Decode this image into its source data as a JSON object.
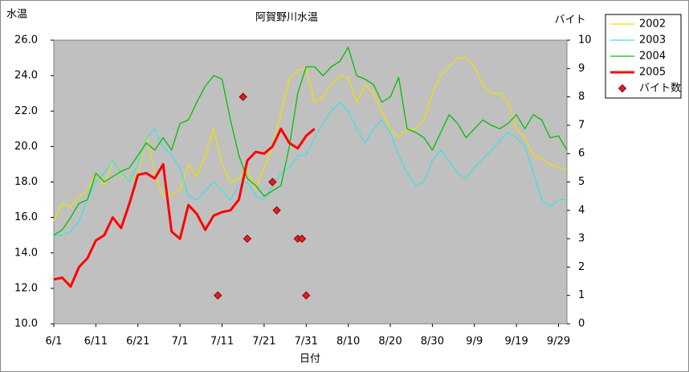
{
  "chart_data": {
    "type": "line",
    "title": "阿賀野川水温",
    "y_label": "水温",
    "y2_label": "バイト",
    "x_label": "日付",
    "xlim": [
      0,
      122
    ],
    "xticks": [
      {
        "value": 0,
        "label": "6/1"
      },
      {
        "value": 10,
        "label": "6/11"
      },
      {
        "value": 20,
        "label": "6/21"
      },
      {
        "value": 30,
        "label": "7/1"
      },
      {
        "value": 40,
        "label": "7/11"
      },
      {
        "value": 50,
        "label": "7/21"
      },
      {
        "value": 60,
        "label": "7/31"
      },
      {
        "value": 70,
        "label": "8/10"
      },
      {
        "value": 80,
        "label": "8/20"
      },
      {
        "value": 90,
        "label": "8/30"
      },
      {
        "value": 100,
        "label": "9/9"
      },
      {
        "value": 110,
        "label": "9/19"
      },
      {
        "value": 120,
        "label": "9/29"
      }
    ],
    "ylim": [
      10,
      26
    ],
    "yticks": [
      {
        "value": 10,
        "label": "10.0"
      },
      {
        "value": 12,
        "label": "12.0"
      },
      {
        "value": 14,
        "label": "14.0"
      },
      {
        "value": 16,
        "label": "16.0"
      },
      {
        "value": 18,
        "label": "18.0"
      },
      {
        "value": 20,
        "label": "20.0"
      },
      {
        "value": 22,
        "label": "22.0"
      },
      {
        "value": 24,
        "label": "24.0"
      },
      {
        "value": 26,
        "label": "26.0"
      }
    ],
    "y2lim": [
      0,
      10
    ],
    "y2ticks": [
      0,
      1,
      2,
      3,
      4,
      5,
      6,
      7,
      8,
      9,
      10
    ],
    "x": [
      0,
      2,
      4,
      6,
      8,
      10,
      12,
      14,
      16,
      18,
      20,
      22,
      24,
      26,
      28,
      30,
      32,
      34,
      36,
      38,
      40,
      42,
      44,
      46,
      48,
      50,
      52,
      54,
      56,
      58,
      60,
      62,
      64,
      66,
      68,
      70,
      72,
      74,
      76,
      78,
      80,
      82,
      84,
      86,
      88,
      90,
      92,
      94,
      96,
      98,
      100,
      102,
      104,
      106,
      108,
      110,
      112,
      114,
      116,
      118,
      120,
      122
    ],
    "series": [
      {
        "name": "2002",
        "color": "#f0e000",
        "values": [
          15.8,
          16.8,
          16.6,
          17.2,
          17.5,
          18.5,
          17.8,
          19.2,
          18.4,
          18.0,
          18.5,
          20.6,
          18.5,
          17.2,
          17.3,
          17.5,
          19.0,
          18.3,
          19.5,
          21.0,
          19.0,
          18.0,
          18.2,
          18.8,
          17.6,
          18.8,
          20.0,
          21.9,
          23.8,
          24.3,
          24.4,
          22.5,
          22.8,
          23.5,
          24.0,
          23.9,
          22.5,
          23.5,
          23.0,
          22.0,
          21.0,
          20.5,
          21.0,
          21.0,
          21.5,
          23.0,
          24.0,
          24.5,
          25.0,
          25.0,
          24.5,
          23.5,
          23.0,
          23.0,
          22.5,
          21.0,
          20.5,
          19.5,
          19.3,
          19.0,
          18.8,
          18.7
        ]
      },
      {
        "name": "2003",
        "color": "#40e0e0",
        "values": [
          15.0,
          15.0,
          15.2,
          15.8,
          17.0,
          18.0,
          18.5,
          19.2,
          18.5,
          18.0,
          19.0,
          20.5,
          21.0,
          20.0,
          19.5,
          18.8,
          17.2,
          17.0,
          17.5,
          18.0,
          17.5,
          17.0,
          17.8,
          18.0,
          17.2,
          17.0,
          17.8,
          18.5,
          18.8,
          19.5,
          19.5,
          20.5,
          21.3,
          22.0,
          22.5,
          22.0,
          21.0,
          20.2,
          21.0,
          21.5,
          20.8,
          19.5,
          18.5,
          17.8,
          18.0,
          19.2,
          19.8,
          19.2,
          18.5,
          18.2,
          18.8,
          19.3,
          19.8,
          20.3,
          20.8,
          20.5,
          20.0,
          18.5,
          17.0,
          16.6,
          17.0,
          17.0
        ]
      },
      {
        "name": "2004",
        "color": "#00c000",
        "values": [
          15.0,
          15.3,
          16.0,
          16.8,
          17.0,
          18.5,
          18.0,
          18.3,
          18.6,
          18.8,
          19.5,
          20.2,
          19.8,
          20.5,
          19.8,
          21.3,
          21.5,
          22.5,
          23.4,
          24.0,
          23.8,
          21.5,
          19.5,
          18.2,
          17.8,
          17.2,
          17.5,
          17.8,
          20.0,
          23.0,
          24.5,
          24.5,
          24.0,
          24.5,
          24.8,
          25.6,
          24.0,
          23.8,
          23.5,
          22.5,
          22.8,
          23.9,
          21.0,
          20.8,
          20.5,
          19.8,
          20.8,
          21.8,
          21.3,
          20.5,
          21.0,
          21.5,
          21.2,
          21.0,
          21.3,
          21.8,
          21.0,
          21.8,
          21.5,
          20.5,
          20.6,
          19.8
        ]
      },
      {
        "name": "2005",
        "color": "#ff0000",
        "values": [
          12.5,
          12.6,
          12.1,
          13.2,
          13.7,
          14.7,
          15.0,
          16.0,
          15.4,
          16.8,
          18.4,
          18.5,
          18.2,
          19.0,
          15.2,
          14.8,
          16.7,
          16.2,
          15.3,
          16.1,
          16.3,
          16.4,
          17.0,
          19.2,
          19.7,
          19.6,
          20.0,
          21.0,
          20.2,
          19.9,
          20.6,
          21.0,
          null,
          null,
          null,
          null,
          null,
          null,
          null,
          null,
          null,
          null,
          null,
          null,
          null,
          null,
          null,
          null,
          null,
          null,
          null,
          null,
          null,
          null,
          null,
          null,
          null,
          null,
          null,
          null,
          null,
          null
        ]
      },
      {
        "name": "バイト数",
        "color": "#e02020",
        "type": "scatter",
        "axis": "y2",
        "x": [
          39,
          45,
          46,
          52,
          53,
          58,
          59,
          60
        ],
        "values": [
          1,
          8,
          3,
          5,
          4,
          3,
          3,
          1
        ]
      }
    ]
  }
}
